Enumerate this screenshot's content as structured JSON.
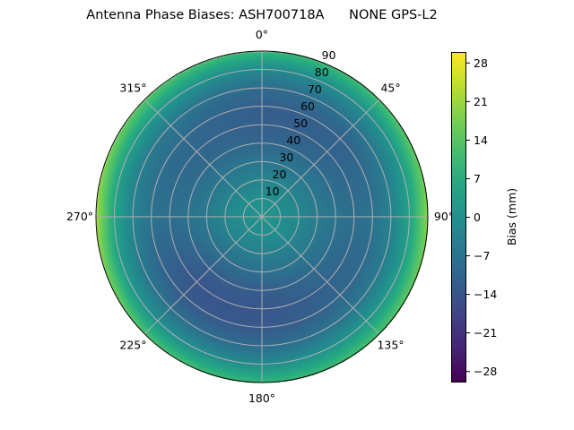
{
  "chart_data": {
    "type": "heatmap",
    "subtype": "polar",
    "title": "Antenna Phase Biases: ASH700718A      NONE GPS-L2",
    "angular_axis": {
      "zero_location": "top",
      "direction": "clockwise",
      "tick_labels": [
        "0°",
        "45°",
        "90°",
        "135°",
        "180°",
        "225°",
        "270°",
        "315°"
      ],
      "ticks": [
        0,
        45,
        90,
        135,
        180,
        225,
        270,
        315
      ]
    },
    "radial_axis": {
      "range": [
        0,
        90
      ],
      "ticks": [
        10,
        20,
        30,
        40,
        50,
        60,
        70,
        80,
        90
      ],
      "tick_labels": [
        "10",
        "20",
        "30",
        "40",
        "50",
        "60",
        "70",
        "80",
        "90"
      ]
    },
    "grid": true,
    "colormap": "viridis",
    "colorbar": {
      "label": "Bias (mm)",
      "range": [
        -30,
        30
      ],
      "ticks": [
        28,
        21,
        14,
        7,
        0,
        -7,
        -14,
        -21,
        -28
      ],
      "tick_labels": [
        "28",
        "21",
        "14",
        "7",
        "0",
        "−7",
        "−14",
        "−21",
        "−28"
      ],
      "placement": "right"
    },
    "azimuths": [
      0,
      45,
      90,
      135,
      180,
      225,
      270,
      315
    ],
    "zeniths": [
      0,
      10,
      20,
      30,
      40,
      50,
      60,
      70,
      80,
      90
    ],
    "values": [
      [
        1,
        0,
        -3,
        -6,
        -10,
        -12,
        -12,
        -9,
        -2,
        10
      ],
      [
        1,
        0,
        -3,
        -6,
        -9,
        -11,
        -11,
        -7,
        0,
        12
      ],
      [
        1,
        0,
        -2,
        -5,
        -7,
        -8,
        -7,
        -3,
        5,
        20
      ],
      [
        1,
        0,
        -3,
        -6,
        -9,
        -11,
        -10,
        -6,
        2,
        13
      ],
      [
        1,
        -1,
        -4,
        -8,
        -12,
        -14,
        -13,
        -9,
        -1,
        10
      ],
      [
        1,
        -1,
        -4,
        -8,
        -12,
        -14,
        -13,
        -8,
        0,
        13
      ],
      [
        1,
        0,
        -2,
        -5,
        -7,
        -8,
        -7,
        -3,
        5,
        22
      ],
      [
        1,
        0,
        -3,
        -6,
        -9,
        -10,
        -9,
        -6,
        2,
        14
      ]
    ]
  }
}
